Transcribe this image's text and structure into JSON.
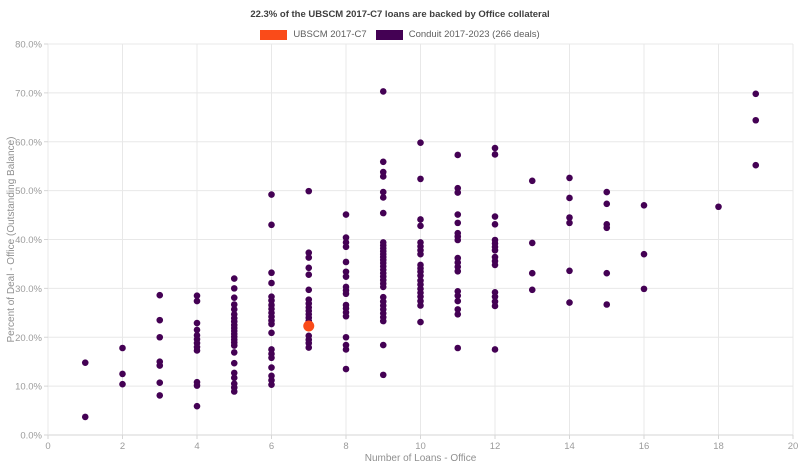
{
  "title": "22.3% of the UBSCM 2017-C7 loans are backed by Office collateral",
  "legend": [
    {
      "label": "UBSCM 2017-C7",
      "color": "#fa4b19"
    },
    {
      "label": "Conduit 2017-2023 (266 deals)",
      "color": "#440154"
    }
  ],
  "colors": {
    "background": "#ffffff",
    "gridline": "#e8e8e8",
    "axis_line": "#d6d6d6",
    "tick_text": "#9b9b9b",
    "title_text": "#3f3f3f"
  },
  "chart_data": {
    "type": "scatter",
    "title": "22.3% of the UBSCM 2017-C7 loans are backed by Office collateral",
    "xlabel": "Number of Loans - Office",
    "ylabel": "Percent of Deal - Office (Outstanding Balance)",
    "xlim": [
      0,
      20
    ],
    "ylim": [
      0,
      80
    ],
    "x_ticks": [
      0,
      2,
      4,
      6,
      8,
      10,
      12,
      14,
      16,
      18,
      20
    ],
    "y_ticks": [
      0,
      10,
      20,
      30,
      40,
      50,
      60,
      70,
      80
    ],
    "y_tick_labels": [
      "0.0%",
      "10.0%",
      "20.0%",
      "30.0%",
      "40.0%",
      "50.0%",
      "60.0%",
      "70.0%",
      "80.0%"
    ],
    "grid": true,
    "legend_position": "top",
    "series": [
      {
        "name": "UBSCM 2017-C7",
        "color": "#fa4b19",
        "marker_radius": 5.5,
        "points": [
          [
            7,
            22.3
          ]
        ]
      },
      {
        "name": "Conduit 2017-2023 (266 deals)",
        "color": "#440154",
        "marker_radius": 3.3,
        "points": [
          [
            1,
            14.8
          ],
          [
            1,
            3.7
          ],
          [
            2,
            17.8
          ],
          [
            2,
            12.5
          ],
          [
            2,
            10.4
          ],
          [
            3,
            28.6
          ],
          [
            3,
            23.5
          ],
          [
            3,
            20.0
          ],
          [
            3,
            15.0
          ],
          [
            3,
            14.2
          ],
          [
            3,
            10.7
          ],
          [
            3,
            8.1
          ],
          [
            4,
            28.5
          ],
          [
            4,
            27.4
          ],
          [
            4,
            22.9
          ],
          [
            4,
            21.5
          ],
          [
            4,
            20.4
          ],
          [
            4,
            19.6
          ],
          [
            4,
            18.8
          ],
          [
            4,
            18.0
          ],
          [
            4,
            17.3
          ],
          [
            4,
            10.8
          ],
          [
            4,
            10.1
          ],
          [
            4,
            5.9
          ],
          [
            5,
            32.0
          ],
          [
            5,
            30.0
          ],
          [
            5,
            28.1
          ],
          [
            5,
            26.7
          ],
          [
            5,
            25.7
          ],
          [
            5,
            24.7
          ],
          [
            5,
            23.9
          ],
          [
            5,
            23.2
          ],
          [
            5,
            22.5
          ],
          [
            5,
            21.9
          ],
          [
            5,
            21.3
          ],
          [
            5,
            20.7
          ],
          [
            5,
            20.1
          ],
          [
            5,
            19.5
          ],
          [
            5,
            18.9
          ],
          [
            5,
            18.3
          ],
          [
            5,
            16.9
          ],
          [
            5,
            14.7
          ],
          [
            5,
            12.7
          ],
          [
            5,
            11.7
          ],
          [
            5,
            10.5
          ],
          [
            5,
            9.7
          ],
          [
            5,
            8.9
          ],
          [
            6,
            49.2
          ],
          [
            6,
            43.0
          ],
          [
            6,
            33.2
          ],
          [
            6,
            31.1
          ],
          [
            6,
            28.3
          ],
          [
            6,
            27.5
          ],
          [
            6,
            26.6
          ],
          [
            6,
            25.8
          ],
          [
            6,
            25.0
          ],
          [
            6,
            24.2
          ],
          [
            6,
            23.4
          ],
          [
            6,
            22.7
          ],
          [
            6,
            20.9
          ],
          [
            6,
            17.5
          ],
          [
            6,
            16.6
          ],
          [
            6,
            15.8
          ],
          [
            6,
            13.8
          ],
          [
            6,
            12.1
          ],
          [
            6,
            11.2
          ],
          [
            6,
            10.3
          ],
          [
            7,
            49.9
          ],
          [
            7,
            37.3
          ],
          [
            7,
            36.3
          ],
          [
            7,
            34.2
          ],
          [
            7,
            32.8
          ],
          [
            7,
            29.7
          ],
          [
            7,
            27.7
          ],
          [
            7,
            26.9
          ],
          [
            7,
            26.1
          ],
          [
            7,
            25.4
          ],
          [
            7,
            24.7
          ],
          [
            7,
            24.0
          ],
          [
            7,
            23.3
          ],
          [
            7,
            22.6
          ],
          [
            7,
            20.3
          ],
          [
            7,
            19.5
          ],
          [
            7,
            18.8
          ],
          [
            7,
            17.9
          ],
          [
            8,
            45.1
          ],
          [
            8,
            40.4
          ],
          [
            8,
            39.4
          ],
          [
            8,
            38.5
          ],
          [
            8,
            35.4
          ],
          [
            8,
            33.4
          ],
          [
            8,
            32.4
          ],
          [
            8,
            30.3
          ],
          [
            8,
            29.6
          ],
          [
            8,
            28.9
          ],
          [
            8,
            26.6
          ],
          [
            8,
            25.9
          ],
          [
            8,
            25.1
          ],
          [
            8,
            24.3
          ],
          [
            8,
            20.0
          ],
          [
            8,
            18.4
          ],
          [
            8,
            17.5
          ],
          [
            8,
            13.5
          ],
          [
            9,
            70.3
          ],
          [
            9,
            55.9
          ],
          [
            9,
            53.8
          ],
          [
            9,
            52.9
          ],
          [
            9,
            49.7
          ],
          [
            9,
            48.6
          ],
          [
            9,
            45.4
          ],
          [
            9,
            39.4
          ],
          [
            9,
            38.8
          ],
          [
            9,
            38.2
          ],
          [
            9,
            37.6
          ],
          [
            9,
            37.0
          ],
          [
            9,
            36.4
          ],
          [
            9,
            35.8
          ],
          [
            9,
            35.2
          ],
          [
            9,
            34.5
          ],
          [
            9,
            33.8
          ],
          [
            9,
            33.1
          ],
          [
            9,
            32.4
          ],
          [
            9,
            31.7
          ],
          [
            9,
            31.0
          ],
          [
            9,
            30.3
          ],
          [
            9,
            28.2
          ],
          [
            9,
            27.3
          ],
          [
            9,
            26.5
          ],
          [
            9,
            25.7
          ],
          [
            9,
            24.9
          ],
          [
            9,
            24.1
          ],
          [
            9,
            23.3
          ],
          [
            9,
            18.4
          ],
          [
            9,
            12.3
          ],
          [
            10,
            59.8
          ],
          [
            10,
            52.4
          ],
          [
            10,
            44.1
          ],
          [
            10,
            42.8
          ],
          [
            10,
            39.4
          ],
          [
            10,
            38.6
          ],
          [
            10,
            37.8
          ],
          [
            10,
            37.0
          ],
          [
            10,
            34.8
          ],
          [
            10,
            34.1
          ],
          [
            10,
            33.4
          ],
          [
            10,
            32.6
          ],
          [
            10,
            31.6
          ],
          [
            10,
            30.8
          ],
          [
            10,
            29.9
          ],
          [
            10,
            29.1
          ],
          [
            10,
            28.3
          ],
          [
            10,
            27.4
          ],
          [
            10,
            26.5
          ],
          [
            10,
            23.1
          ],
          [
            11,
            57.3
          ],
          [
            11,
            50.5
          ],
          [
            11,
            49.6
          ],
          [
            11,
            45.1
          ],
          [
            11,
            43.4
          ],
          [
            11,
            41.3
          ],
          [
            11,
            40.6
          ],
          [
            11,
            39.9
          ],
          [
            11,
            36.2
          ],
          [
            11,
            35.3
          ],
          [
            11,
            34.4
          ],
          [
            11,
            33.5
          ],
          [
            11,
            29.4
          ],
          [
            11,
            28.5
          ],
          [
            11,
            27.4
          ],
          [
            11,
            25.7
          ],
          [
            11,
            24.7
          ],
          [
            11,
            17.8
          ],
          [
            12,
            58.7
          ],
          [
            12,
            57.4
          ],
          [
            12,
            44.7
          ],
          [
            12,
            43.1
          ],
          [
            12,
            39.9
          ],
          [
            12,
            39.2
          ],
          [
            12,
            38.5
          ],
          [
            12,
            37.8
          ],
          [
            12,
            36.4
          ],
          [
            12,
            35.6
          ],
          [
            12,
            34.8
          ],
          [
            12,
            29.2
          ],
          [
            12,
            28.3
          ],
          [
            12,
            27.3
          ],
          [
            12,
            26.4
          ],
          [
            12,
            17.5
          ],
          [
            13,
            52.0
          ],
          [
            13,
            39.3
          ],
          [
            13,
            33.1
          ],
          [
            13,
            29.7
          ],
          [
            14,
            52.6
          ],
          [
            14,
            48.5
          ],
          [
            14,
            44.5
          ],
          [
            14,
            43.4
          ],
          [
            14,
            33.6
          ],
          [
            14,
            27.1
          ],
          [
            15,
            49.7
          ],
          [
            15,
            47.3
          ],
          [
            15,
            43.1
          ],
          [
            15,
            42.4
          ],
          [
            15,
            33.1
          ],
          [
            15,
            26.7
          ],
          [
            16,
            47.0
          ],
          [
            16,
            37.0
          ],
          [
            16,
            29.9
          ],
          [
            18,
            46.7
          ],
          [
            19,
            69.8
          ],
          [
            19,
            64.4
          ],
          [
            19,
            55.2
          ]
        ]
      }
    ]
  }
}
